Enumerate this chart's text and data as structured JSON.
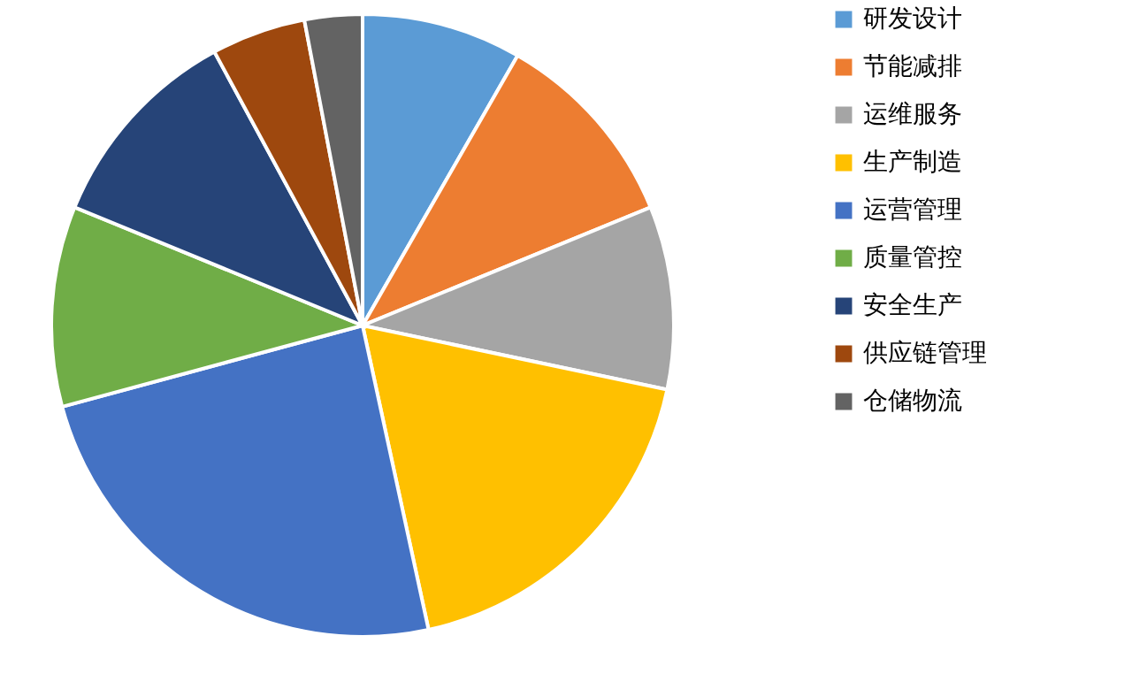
{
  "chart_data": {
    "type": "pie",
    "categories": [
      "研发设计",
      "节能减排",
      "运维服务",
      "生产制造",
      "运营管理",
      "质量管控",
      "安全生产",
      "供应链管理",
      "仓储物流"
    ],
    "values": [
      8.3,
      10.5,
      9.5,
      18.3,
      24.2,
      10.4,
      10.9,
      4.9,
      3.0
    ],
    "colors": [
      "#5b9bd5",
      "#ed7d31",
      "#a5a5a5",
      "#ffc000",
      "#4472c4",
      "#70ad47",
      "#264478",
      "#9e480e",
      "#636363"
    ],
    "legend": "right"
  }
}
